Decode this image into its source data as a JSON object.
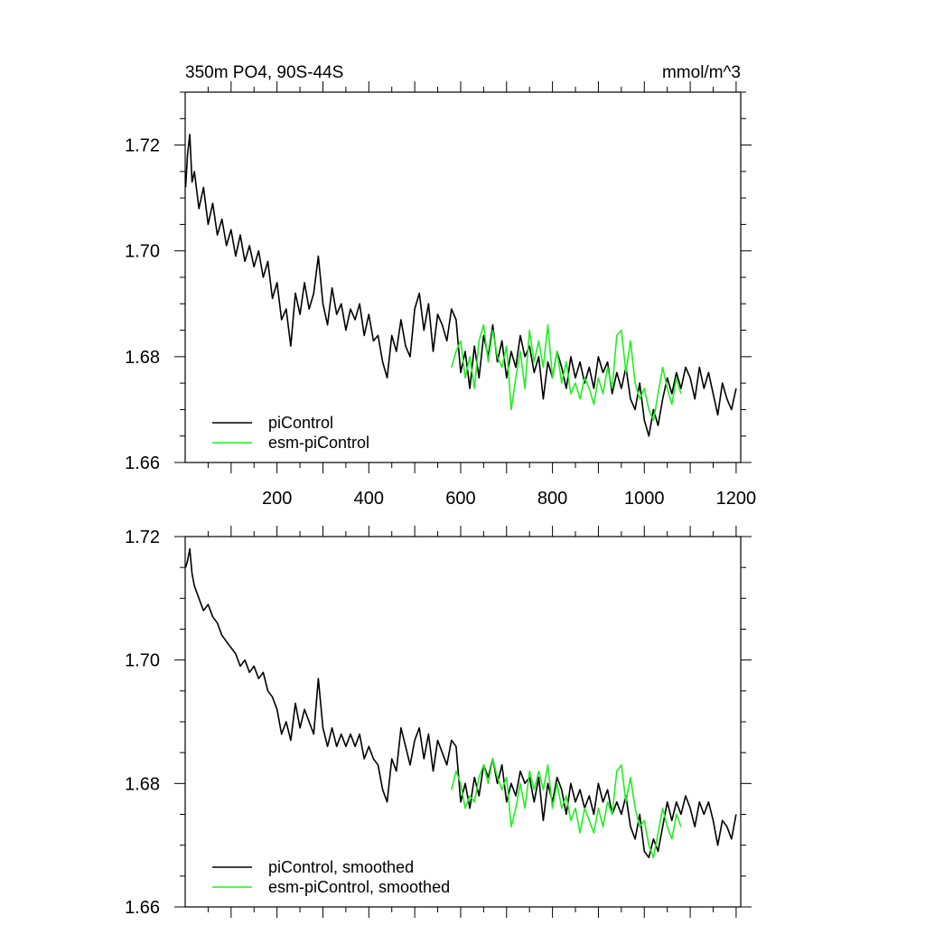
{
  "chart_data": [
    {
      "type": "line",
      "title_left": "350m PO4, 90S-44S",
      "title_right": "mmol/m^3",
      "xlim": [
        0,
        1210
      ],
      "ylim": [
        1.66,
        1.73
      ],
      "x_ticks": [
        200,
        400,
        600,
        800,
        1000,
        1200
      ],
      "y_ticks": [
        "1.66",
        "1.68",
        "1.70",
        "1.72"
      ],
      "legend_position": "bottom-left",
      "series": [
        {
          "name": "piControl",
          "color": "#000000",
          "x": [
            1,
            5,
            10,
            15,
            20,
            30,
            40,
            50,
            60,
            70,
            80,
            90,
            100,
            110,
            120,
            130,
            140,
            150,
            160,
            170,
            180,
            190,
            200,
            210,
            220,
            230,
            240,
            250,
            260,
            270,
            280,
            290,
            300,
            310,
            320,
            330,
            340,
            350,
            360,
            370,
            380,
            390,
            400,
            410,
            420,
            430,
            440,
            450,
            460,
            470,
            480,
            490,
            500,
            510,
            520,
            530,
            540,
            550,
            560,
            570,
            580,
            590,
            600,
            610,
            620,
            630,
            640,
            650,
            660,
            670,
            680,
            690,
            700,
            710,
            720,
            730,
            740,
            750,
            760,
            770,
            780,
            790,
            800,
            810,
            820,
            830,
            840,
            850,
            860,
            870,
            880,
            890,
            900,
            910,
            920,
            930,
            940,
            950,
            960,
            970,
            980,
            990,
            1000,
            1010,
            1020,
            1030,
            1040,
            1050,
            1060,
            1070,
            1080,
            1090,
            1100,
            1110,
            1120,
            1130,
            1140,
            1150,
            1160,
            1170,
            1180,
            1190,
            1200
          ],
          "y": [
            1.712,
            1.718,
            1.722,
            1.713,
            1.715,
            1.708,
            1.712,
            1.705,
            1.709,
            1.703,
            1.706,
            1.701,
            1.704,
            1.699,
            1.703,
            1.698,
            1.701,
            1.697,
            1.7,
            1.695,
            1.698,
            1.691,
            1.694,
            1.687,
            1.689,
            1.682,
            1.692,
            1.688,
            1.694,
            1.689,
            1.692,
            1.699,
            1.69,
            1.686,
            1.693,
            1.688,
            1.69,
            1.685,
            1.689,
            1.687,
            1.69,
            1.684,
            1.688,
            1.683,
            1.684,
            1.679,
            1.676,
            1.684,
            1.681,
            1.687,
            1.682,
            1.68,
            1.689,
            1.692,
            1.685,
            1.69,
            1.681,
            1.688,
            1.686,
            1.683,
            1.689,
            1.687,
            1.677,
            1.681,
            1.674,
            1.682,
            1.676,
            1.684,
            1.68,
            1.686,
            1.679,
            1.683,
            1.676,
            1.681,
            1.678,
            1.684,
            1.68,
            1.682,
            1.677,
            1.68,
            1.672,
            1.679,
            1.676,
            1.681,
            1.678,
            1.674,
            1.68,
            1.676,
            1.679,
            1.675,
            1.678,
            1.674,
            1.68,
            1.677,
            1.679,
            1.673,
            1.677,
            1.674,
            1.678,
            1.672,
            1.67,
            1.675,
            1.668,
            1.665,
            1.67,
            1.667,
            1.672,
            1.676,
            1.673,
            1.677,
            1.674,
            1.678,
            1.676,
            1.672,
            1.678,
            1.674,
            1.677,
            1.673,
            1.669,
            1.675,
            1.672,
            1.67,
            1.674
          ]
        },
        {
          "name": "esm-piControl",
          "color": "#22ee22",
          "x": [
            580,
            590,
            600,
            610,
            620,
            630,
            640,
            650,
            660,
            670,
            680,
            690,
            700,
            710,
            720,
            730,
            740,
            750,
            760,
            770,
            780,
            790,
            800,
            810,
            820,
            830,
            840,
            850,
            860,
            870,
            880,
            890,
            900,
            910,
            920,
            930,
            940,
            950,
            960,
            970,
            980,
            990,
            1000,
            1010,
            1020,
            1030,
            1040,
            1050,
            1060,
            1070,
            1080
          ],
          "y": [
            1.678,
            1.681,
            1.683,
            1.676,
            1.68,
            1.674,
            1.683,
            1.686,
            1.679,
            1.685,
            1.68,
            1.678,
            1.682,
            1.67,
            1.676,
            1.681,
            1.674,
            1.685,
            1.679,
            1.683,
            1.678,
            1.686,
            1.676,
            1.681,
            1.675,
            1.679,
            1.673,
            1.675,
            1.672,
            1.676,
            1.674,
            1.671,
            1.676,
            1.673,
            1.678,
            1.674,
            1.684,
            1.685,
            1.677,
            1.683,
            1.675,
            1.672,
            1.674,
            1.67,
            1.668,
            1.673,
            1.678,
            1.674,
            1.671,
            1.676,
            1.673
          ]
        }
      ]
    },
    {
      "type": "line",
      "xlim": [
        0,
        1210
      ],
      "ylim": [
        1.66,
        1.72
      ],
      "y_ticks": [
        "1.66",
        "1.68",
        "1.70",
        "1.72"
      ],
      "legend_position": "bottom-left",
      "series": [
        {
          "name": "piControl, smoothed",
          "color": "#000000",
          "x": [
            1,
            5,
            10,
            15,
            20,
            30,
            40,
            50,
            60,
            70,
            80,
            90,
            100,
            110,
            120,
            130,
            140,
            150,
            160,
            170,
            180,
            190,
            200,
            210,
            220,
            230,
            240,
            250,
            260,
            270,
            280,
            290,
            300,
            310,
            320,
            330,
            340,
            350,
            360,
            370,
            380,
            390,
            400,
            410,
            420,
            430,
            440,
            450,
            460,
            470,
            480,
            490,
            500,
            510,
            520,
            530,
            540,
            550,
            560,
            570,
            580,
            590,
            600,
            610,
            620,
            630,
            640,
            650,
            660,
            670,
            680,
            690,
            700,
            710,
            720,
            730,
            740,
            750,
            760,
            770,
            780,
            790,
            800,
            810,
            820,
            830,
            840,
            850,
            860,
            870,
            880,
            890,
            900,
            910,
            920,
            930,
            940,
            950,
            960,
            970,
            980,
            990,
            1000,
            1010,
            1020,
            1030,
            1040,
            1050,
            1060,
            1070,
            1080,
            1090,
            1100,
            1110,
            1120,
            1130,
            1140,
            1150,
            1160,
            1170,
            1180,
            1190,
            1200
          ],
          "y": [
            1.715,
            1.716,
            1.718,
            1.714,
            1.712,
            1.71,
            1.708,
            1.709,
            1.707,
            1.706,
            1.704,
            1.703,
            1.702,
            1.701,
            1.699,
            1.7,
            1.698,
            1.699,
            1.697,
            1.698,
            1.695,
            1.694,
            1.692,
            1.688,
            1.69,
            1.687,
            1.693,
            1.689,
            1.692,
            1.69,
            1.688,
            1.697,
            1.689,
            1.686,
            1.689,
            1.686,
            1.688,
            1.686,
            1.688,
            1.686,
            1.688,
            1.684,
            1.686,
            1.684,
            1.683,
            1.679,
            1.677,
            1.684,
            1.682,
            1.689,
            1.686,
            1.683,
            1.687,
            1.689,
            1.684,
            1.688,
            1.682,
            1.687,
            1.685,
            1.683,
            1.687,
            1.686,
            1.677,
            1.68,
            1.676,
            1.681,
            1.678,
            1.683,
            1.681,
            1.684,
            1.68,
            1.683,
            1.677,
            1.68,
            1.678,
            1.682,
            1.68,
            1.681,
            1.677,
            1.681,
            1.674,
            1.68,
            1.677,
            1.681,
            1.679,
            1.675,
            1.68,
            1.677,
            1.679,
            1.676,
            1.678,
            1.675,
            1.68,
            1.677,
            1.679,
            1.675,
            1.677,
            1.675,
            1.678,
            1.673,
            1.671,
            1.675,
            1.669,
            1.668,
            1.671,
            1.669,
            1.673,
            1.677,
            1.674,
            1.677,
            1.675,
            1.678,
            1.676,
            1.673,
            1.677,
            1.675,
            1.677,
            1.674,
            1.67,
            1.674,
            1.673,
            1.671,
            1.675
          ]
        },
        {
          "name": "esm-piControl, smoothed",
          "color": "#22ee22",
          "x": [
            580,
            590,
            600,
            610,
            620,
            630,
            640,
            650,
            660,
            670,
            680,
            690,
            700,
            710,
            720,
            730,
            740,
            750,
            760,
            770,
            780,
            790,
            800,
            810,
            820,
            830,
            840,
            850,
            860,
            870,
            880,
            890,
            900,
            910,
            920,
            930,
            940,
            950,
            960,
            970,
            980,
            990,
            1000,
            1010,
            1020,
            1030,
            1040,
            1050,
            1060,
            1070,
            1080
          ],
          "y": [
            1.679,
            1.682,
            1.68,
            1.676,
            1.678,
            1.677,
            1.681,
            1.683,
            1.68,
            1.684,
            1.681,
            1.679,
            1.681,
            1.673,
            1.676,
            1.68,
            1.676,
            1.682,
            1.679,
            1.682,
            1.679,
            1.683,
            1.676,
            1.68,
            1.676,
            1.678,
            1.674,
            1.676,
            1.672,
            1.676,
            1.674,
            1.672,
            1.676,
            1.673,
            1.677,
            1.675,
            1.682,
            1.683,
            1.677,
            1.681,
            1.676,
            1.673,
            1.674,
            1.67,
            1.668,
            1.672,
            1.676,
            1.673,
            1.671,
            1.675,
            1.673
          ]
        }
      ]
    }
  ]
}
